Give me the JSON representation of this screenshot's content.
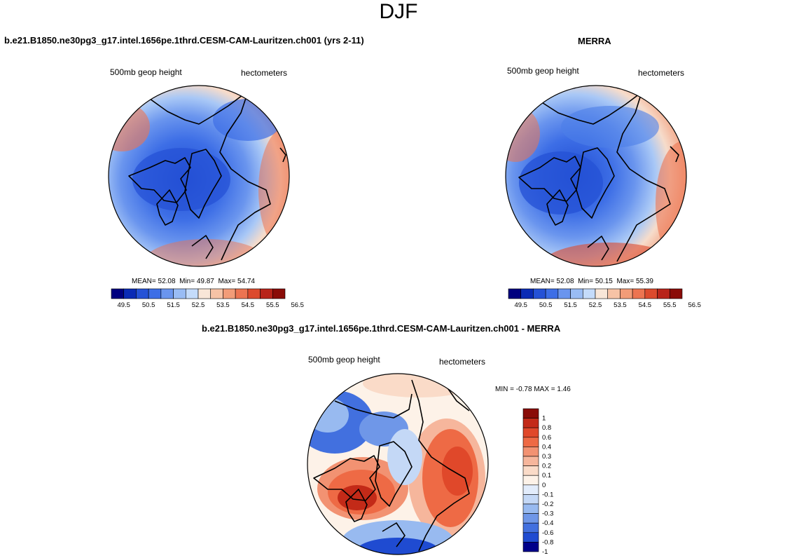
{
  "figure_title": "DJF",
  "panels": [
    {
      "title": "b.e21.B1850.ne30pg3_g17.intel.1656pe.1thrd.CESM-CAM-Lauritzen.ch001 (yrs 2-11)",
      "variable": "500mb geop height",
      "units": "hectometers",
      "stats": {
        "mean_label": "MEAN=",
        "mean": "52.08",
        "min_label": "Min=",
        "min": "49.87",
        "max_label": "Max=",
        "max": "54.74"
      },
      "colorbar": {
        "labels": [
          "49.5",
          "50.5",
          "51.5",
          "52.5",
          "53.5",
          "54.5",
          "55.5",
          "56.5"
        ]
      }
    },
    {
      "title": "MERRA",
      "variable": "500mb geop height",
      "units": "hectometers",
      "stats": {
        "mean_label": "MEAN=",
        "mean": "52.08",
        "min_label": "Min=",
        "min": "50.15",
        "max_label": "Max=",
        "max": "55.39"
      },
      "colorbar": {
        "labels": [
          "49.5",
          "50.5",
          "51.5",
          "52.5",
          "53.5",
          "54.5",
          "55.5",
          "56.5"
        ]
      }
    },
    {
      "title": "b.e21.B1850.ne30pg3_g17.intel.1656pe.1thrd.CESM-CAM-Lauritzen.ch001 - MERRA",
      "variable": "500mb geop height",
      "units": "hectometers",
      "stats": {
        "min_label": "MIN =",
        "min": "-0.78",
        "max_label": "MAX =",
        "max": "1.46"
      },
      "colorbar": {
        "labels": [
          "1",
          "0.8",
          "0.6",
          "0.4",
          "0.3",
          "0.2",
          "0.1",
          "0",
          "-0.1",
          "-0.2",
          "-0.3",
          "-0.4",
          "-0.6",
          "-0.8",
          "-1"
        ]
      }
    }
  ],
  "colors": {
    "abs_scale": [
      "#00007f",
      "#0a2bb5",
      "#2552d6",
      "#3d6ee6",
      "#6a95ee",
      "#99bcf4",
      "#c4dbfa",
      "#f8e6d8",
      "#f6c3a6",
      "#f29c78",
      "#ec7451",
      "#dc4a2d",
      "#b8241a",
      "#8a0c08"
    ],
    "diff_scale": [
      "#8a0c08",
      "#c32a18",
      "#e0482a",
      "#ee6a45",
      "#f29272",
      "#f6b69c",
      "#fadbc8",
      "#fdf2e8",
      "#e2ecfb",
      "#c4d8f6",
      "#98baf0",
      "#6f97e8",
      "#4270df",
      "#1f4bd1",
      "#00008a"
    ]
  }
}
